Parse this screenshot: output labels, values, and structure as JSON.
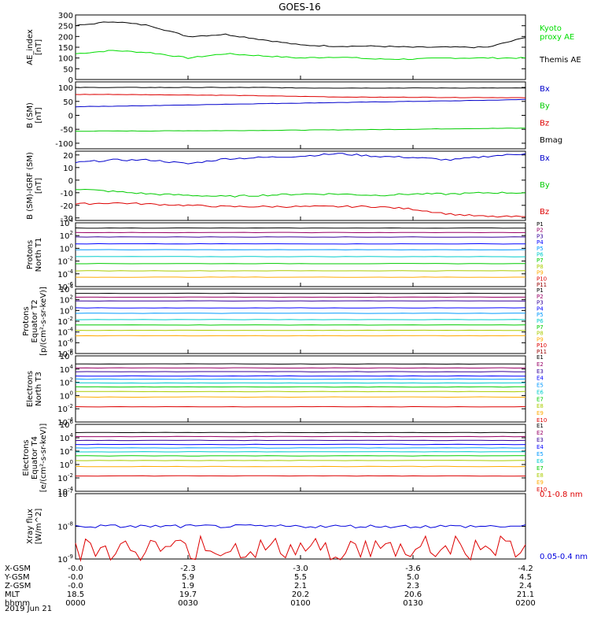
{
  "title": "GOES-16",
  "date_label": "2019 Jun 21",
  "ephemeris": {
    "rows": [
      {
        "label": "X-GSM",
        "values": [
          "-0.0",
          "-2.3",
          "-3.0",
          "-3.6",
          "-4.2"
        ]
      },
      {
        "label": "Y-GSM",
        "values": [
          "-0.0",
          "5.9",
          "5.5",
          "5.0",
          "4.5"
        ]
      },
      {
        "label": "Z-GSM",
        "values": [
          "-0.0",
          "1.9",
          "2.1",
          "2.3",
          "2.4"
        ]
      },
      {
        "label": "MLT",
        "values": [
          "18.5",
          "19.7",
          "20.2",
          "20.6",
          "21.1"
        ]
      },
      {
        "label": "hhmm",
        "values": [
          "0000",
          "0030",
          "0100",
          "0130",
          "0200"
        ]
      }
    ]
  },
  "chart_data": [
    {
      "type": "line",
      "ylabel": "AE_index\n[nT]",
      "ylim": [
        0,
        300
      ],
      "yscale": "linear",
      "yticks": [
        "0",
        "50",
        "100",
        "150",
        "200",
        "250",
        "300"
      ],
      "x": [
        "00:00",
        "00:10",
        "00:20",
        "00:30",
        "00:40",
        "00:50",
        "01:00",
        "01:10",
        "01:20",
        "01:30",
        "01:40",
        "01:50",
        "02:00"
      ],
      "series": [
        {
          "name": "Kyoto\nproxy AE",
          "color": "#00dd00",
          "values": [
            120,
            135,
            125,
            100,
            120,
            110,
            100,
            105,
            95,
            95,
            100,
            100,
            100
          ]
        },
        {
          "name": "Themis AE",
          "color": "#000000",
          "values": [
            250,
            270,
            250,
            200,
            210,
            185,
            160,
            155,
            155,
            150,
            150,
            150,
            195
          ]
        }
      ]
    },
    {
      "type": "line",
      "ylabel": "B (SM)\n[nT]",
      "ylim": [
        -120,
        120
      ],
      "yscale": "linear",
      "yticks": [
        "-100",
        "-50",
        "0",
        "50",
        "100"
      ],
      "x": [
        "00:00",
        "00:10",
        "00:20",
        "00:30",
        "00:40",
        "00:50",
        "01:00",
        "01:10",
        "01:20",
        "01:30",
        "01:40",
        "01:50",
        "02:00"
      ],
      "series": [
        {
          "name": "Bx",
          "color": "#0000cc",
          "values": [
            31,
            33,
            35,
            37,
            40,
            42,
            44,
            46,
            48,
            50,
            52,
            54,
            57
          ]
        },
        {
          "name": "By",
          "color": "#00cc00",
          "values": [
            -57,
            -56,
            -56,
            -55,
            -55,
            -54,
            -53,
            -52,
            -51,
            -50,
            -48,
            -47,
            -46
          ]
        },
        {
          "name": "Bz",
          "color": "#dd0000",
          "values": [
            75,
            75,
            74,
            73,
            72,
            70,
            68,
            66,
            65,
            65,
            64,
            64,
            63
          ]
        },
        {
          "name": "Bmag",
          "color": "#000000",
          "values": [
            100,
            100,
            100,
            100,
            100,
            100,
            98,
            98,
            98,
            98,
            98,
            98,
            98
          ]
        }
      ]
    },
    {
      "type": "line",
      "ylabel": "B (SM)-IGRF (SM)\n[nT]",
      "ylim": [
        -32,
        23
      ],
      "yscale": "linear",
      "yticks": [
        "-30",
        "-20",
        "-10",
        "0",
        "10",
        "20"
      ],
      "x": [
        "00:00",
        "00:10",
        "00:20",
        "00:30",
        "00:40",
        "00:50",
        "01:00",
        "01:10",
        "01:20",
        "01:30",
        "01:40",
        "01:50",
        "02:00"
      ],
      "series": [
        {
          "name": "Bx",
          "color": "#0000cc",
          "values": [
            14,
            16,
            16,
            13,
            17,
            18,
            19,
            21,
            19,
            18,
            16,
            19,
            21
          ]
        },
        {
          "name": "By",
          "color": "#00cc00",
          "values": [
            -7,
            -9,
            -11,
            -12,
            -13,
            -12,
            -11,
            -11,
            -12,
            -11,
            -11,
            -10,
            -10
          ]
        },
        {
          "name": "Bz",
          "color": "#dd0000",
          "values": [
            -19,
            -18,
            -19,
            -20,
            -21,
            -21,
            -21,
            -21,
            -21,
            -23,
            -27,
            -29,
            -29
          ]
        }
      ]
    },
    {
      "type": "line",
      "ylabel": "Protons\nNorth T1",
      "ylim": [
        "1e-6",
        "1e4"
      ],
      "yscale": "log",
      "yticks": [
        "10^4",
        "10^2",
        "10^0",
        "10^-2",
        "10^-4",
        "10^-6"
      ],
      "series": [
        {
          "name": "P1",
          "color": "#000000",
          "value": 1500
        },
        {
          "name": "P2",
          "color": "#990066",
          "value": 300
        },
        {
          "name": "P3",
          "color": "#330099",
          "value": 60
        },
        {
          "name": "P4",
          "color": "#0000ff",
          "value": 5
        },
        {
          "name": "P5",
          "color": "#0099ff",
          "value": 0.6
        },
        {
          "name": "P6",
          "color": "#00cccc",
          "value": 0.05
        },
        {
          "name": "P7",
          "color": "#00cc00",
          "value": 0.004
        },
        {
          "name": "P8",
          "color": "#aacc00",
          "value": 0.0003
        },
        {
          "name": "P9",
          "color": "#ffaa00",
          "value": 3e-05
        },
        {
          "name": "P10",
          "color": "#dd0000",
          "value": null
        },
        {
          "name": "P11",
          "color": "#990000",
          "value": null
        }
      ]
    },
    {
      "type": "line",
      "ylabel": "Protons\nEquator T2\n[p/(cm²-s-sr-keV)]",
      "ylim": [
        "1e-8",
        "1e4"
      ],
      "yscale": "log",
      "yticks": [
        "10^4",
        "10^2",
        "10^0",
        "10^-2",
        "10^-4",
        "10^-6",
        "10^-8"
      ],
      "series": [
        {
          "name": "P1",
          "color": "#000000",
          "value": 1500
        },
        {
          "name": "P2",
          "color": "#990066",
          "value": 300
        },
        {
          "name": "P3",
          "color": "#330099",
          "value": 60
        },
        {
          "name": "P4",
          "color": "#0000ff",
          "value": 3
        },
        {
          "name": "P5",
          "color": "#0099ff",
          "value": 0.3
        },
        {
          "name": "P6",
          "color": "#00cccc",
          "value": 0.02
        },
        {
          "name": "P7",
          "color": "#00cc00",
          "value": 0.002
        },
        {
          "name": "P8",
          "color": "#aacc00",
          "value": 0.0002
        },
        {
          "name": "P9",
          "color": "#ffaa00",
          "value": 2e-05
        },
        {
          "name": "P10",
          "color": "#dd0000",
          "value": null
        },
        {
          "name": "P11",
          "color": "#990000",
          "value": null
        }
      ]
    },
    {
      "type": "line",
      "ylabel": "Electrons\nNorth T3",
      "ylim": [
        "1e-4",
        "1e6"
      ],
      "yscale": "log",
      "yticks": [
        "10^6",
        "10^4",
        "10^2",
        "10^0",
        "10^-2",
        "10^-4"
      ],
      "series": [
        {
          "name": "E1",
          "color": "#000000",
          "value": 60000
        },
        {
          "name": "E2",
          "color": "#990066",
          "value": 15000
        },
        {
          "name": "E3",
          "color": "#330099",
          "value": 4000
        },
        {
          "name": "E4",
          "color": "#0000ff",
          "value": 900
        },
        {
          "name": "E5",
          "color": "#0099ff",
          "value": 300
        },
        {
          "name": "E6",
          "color": "#00cccc",
          "value": 80
        },
        {
          "name": "E7",
          "color": "#00cc00",
          "value": 20
        },
        {
          "name": "E8",
          "color": "#aacc00",
          "value": 4
        },
        {
          "name": "E9",
          "color": "#ffaa00",
          "value": 0.6
        },
        {
          "name": "E10",
          "color": "#dd0000",
          "value": 0.02
        }
      ]
    },
    {
      "type": "line",
      "ylabel": "Electrons\nEquator T4\n[e/(cm²-s-sr-keV)]",
      "ylim": [
        "1e-4",
        "1e6"
      ],
      "yscale": "log",
      "yticks": [
        "10^6",
        "10^4",
        "10^2",
        "10^0",
        "10^-2",
        "10^-4"
      ],
      "series": [
        {
          "name": "E1",
          "color": "#000000",
          "value": 60000
        },
        {
          "name": "E2",
          "color": "#990066",
          "value": 15000
        },
        {
          "name": "E3",
          "color": "#330099",
          "value": 4000
        },
        {
          "name": "E4",
          "color": "#0000ff",
          "value": 1000
        },
        {
          "name": "E5",
          "color": "#0099ff",
          "value": 300
        },
        {
          "name": "E6",
          "color": "#00cccc",
          "value": 80
        },
        {
          "name": "E7",
          "color": "#00cc00",
          "value": 20
        },
        {
          "name": "E8",
          "color": "#aacc00",
          "value": 4
        },
        {
          "name": "E9",
          "color": "#ffaa00",
          "value": 0.5
        },
        {
          "name": "E10",
          "color": "#dd0000",
          "value": 0.02
        }
      ]
    },
    {
      "type": "line",
      "ylabel": "Xray flux\n[W/m^2]",
      "ylim": [
        "1e-9",
        "1e-7"
      ],
      "yscale": "log",
      "yticks": [
        "10^-7",
        "10^-8",
        "10^-9"
      ],
      "series": [
        {
          "name": "0.1-0.8 nm",
          "color": "#dd0000",
          "value": 2e-09
        },
        {
          "name": "0.05-0.4 nm",
          "color": "#0000dd",
          "value": 1e-08
        }
      ]
    }
  ]
}
